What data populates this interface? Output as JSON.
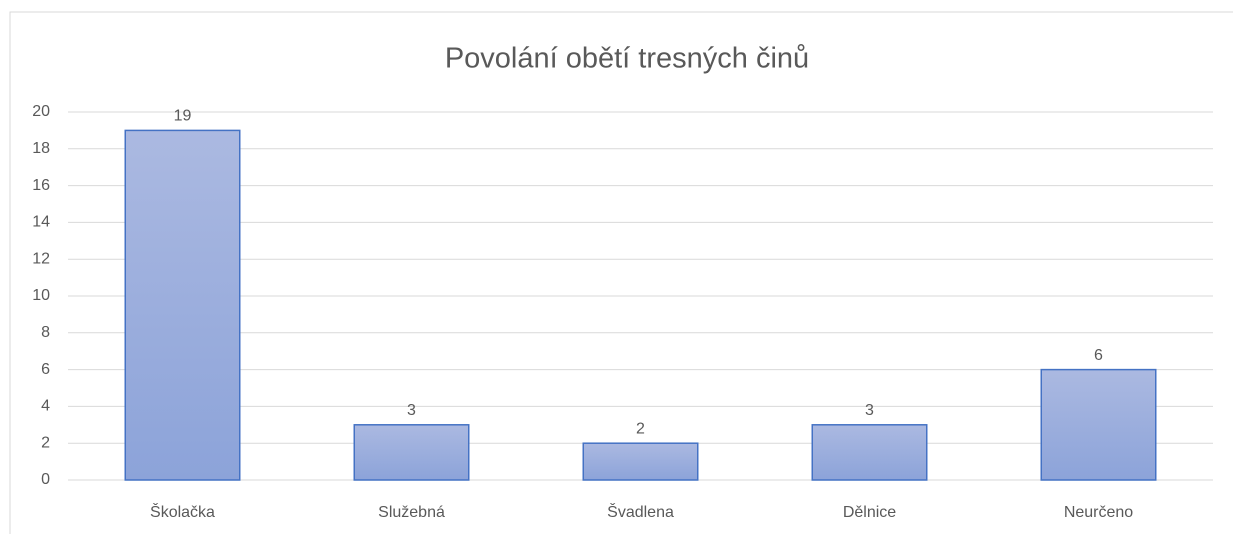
{
  "chart_data": {
    "type": "bar",
    "title": "Povolání obětí tresných činů",
    "categories": [
      "Školačka",
      "Služebná",
      "Švadlena",
      "Dělnice",
      "Neurčeno"
    ],
    "values": [
      19,
      3,
      2,
      3,
      6
    ],
    "color": "#4472c4",
    "ylim": [
      0,
      20
    ],
    "yticks": [
      0,
      2,
      4,
      6,
      8,
      10,
      12,
      14,
      16,
      18,
      20
    ],
    "grid": true
  }
}
